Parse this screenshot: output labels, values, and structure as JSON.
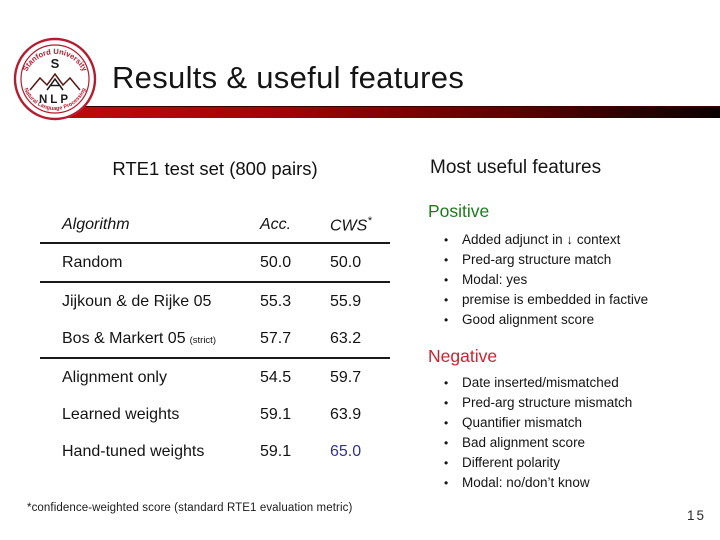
{
  "slide": {
    "title": "Results & useful features",
    "page_number": "15",
    "footnote": "*confidence-weighted score (standard RTE1 evaluation metric)"
  },
  "logo": {
    "top_text": "Stanford University",
    "bottom_text": "Natural Language Processing",
    "center_top": "S",
    "center_bottom": "NLP"
  },
  "left_panel": {
    "heading": "RTE1 test set (800 pairs)",
    "table": {
      "columns": [
        "Algorithm",
        "Acc.",
        "CWS",
        "*"
      ],
      "sections": [
        {
          "rows": [
            {
              "algorithm": "Random",
              "note": "",
              "acc": "50.0",
              "cws": "50.0",
              "highlight_cws": false
            }
          ]
        },
        {
          "rows": [
            {
              "algorithm": "Jijkoun & de Rijke 05",
              "note": "",
              "acc": "55.3",
              "cws": "55.9",
              "highlight_cws": false
            },
            {
              "algorithm": "Bos & Markert 05",
              "note": "(strict)",
              "acc": "57.7",
              "cws": "63.2",
              "highlight_cws": false
            }
          ]
        },
        {
          "rows": [
            {
              "algorithm": "Alignment only",
              "note": "",
              "acc": "54.5",
              "cws": "59.7",
              "highlight_cws": false
            },
            {
              "algorithm": "Learned weights",
              "note": "",
              "acc": "59.1",
              "cws": "63.9",
              "highlight_cws": false
            },
            {
              "algorithm": "Hand-tuned weights",
              "note": "",
              "acc": "59.1",
              "cws": "65.0",
              "highlight_cws": true
            }
          ]
        }
      ]
    }
  },
  "right_panel": {
    "heading": "Most useful features",
    "positive": {
      "label": "Positive",
      "items": [
        "Added adjunct in ↓ context",
        "Pred-arg structure match",
        "Modal: yes",
        "premise is embedded in factive",
        "Good alignment score"
      ]
    },
    "negative": {
      "label": "Negative",
      "items": [
        "Date inserted/mismatched",
        "Pred-arg structure mismatch",
        "Quantifier mismatch",
        "Bad alignment score",
        "Different polarity",
        "Modal: no/don’t know"
      ]
    }
  },
  "colors": {
    "accent_red": "#c00b0b",
    "positive_green": "#1e7a1e",
    "negative_red": "#cc2233",
    "highlight_blue": "#333388",
    "logo_red": "#b51c30"
  }
}
